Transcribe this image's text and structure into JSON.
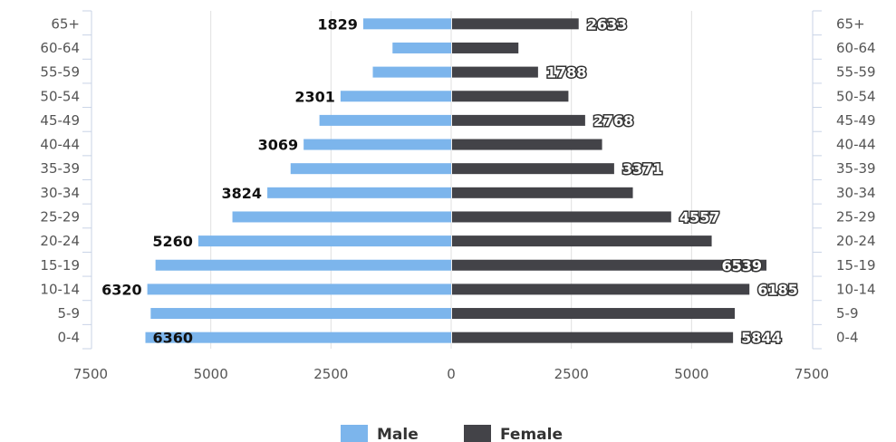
{
  "chart_data": {
    "type": "bar",
    "orientation": "horizontal",
    "subtype": "population-pyramid",
    "categories": [
      "0-4",
      "5-9",
      "10-14",
      "15-19",
      "20-24",
      "25-29",
      "30-34",
      "35-39",
      "40-44",
      "45-49",
      "50-54",
      "55-59",
      "60-64",
      "65+"
    ],
    "series": [
      {
        "name": "Male",
        "color": "#7cb5ec",
        "values": [
          6360,
          6250,
          6320,
          6150,
          5260,
          4550,
          3824,
          3340,
          3069,
          2740,
          2301,
          1630,
          1220,
          1829
        ]
      },
      {
        "name": "Female",
        "color": "#434348",
        "values": [
          5844,
          5880,
          6185,
          6539,
          5400,
          4557,
          3760,
          3371,
          3120,
          2768,
          2420,
          1788,
          1380,
          2633
        ]
      }
    ],
    "data_labels": {
      "Male": {
        "0-4": "6360",
        "10-14": "6320",
        "20-24": "5260",
        "30-34": "3824",
        "40-44": "3069",
        "50-54": "2301",
        "65+": "1829"
      },
      "Female": {
        "0-4": "5844",
        "10-14": "6185",
        "15-19": "6539",
        "25-29": "4557",
        "35-39": "3371",
        "45-49": "2768",
        "55-59": "1788",
        "65+": "2633"
      }
    },
    "x_ticks": [
      "7500",
      "5000",
      "2500",
      "0",
      "2500",
      "5000",
      "7500"
    ],
    "xlim": [
      -7500,
      7500
    ],
    "grid": true,
    "legend": {
      "position": "bottom-center",
      "items": [
        "Male",
        "Female"
      ]
    }
  }
}
